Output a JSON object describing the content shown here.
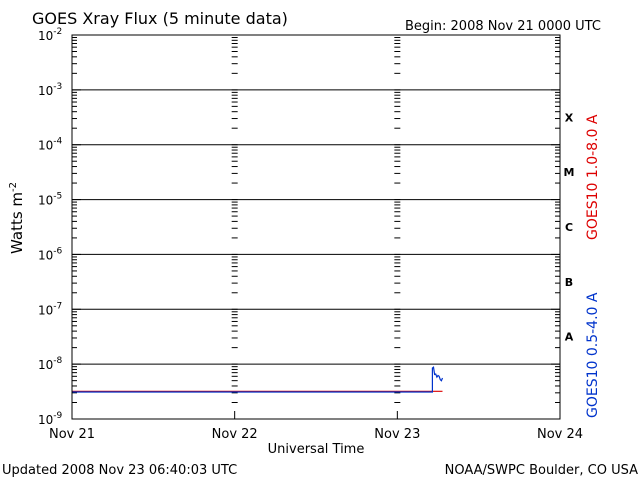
{
  "header": {
    "title": "GOES Xray Flux (5 minute data)",
    "begin": "Begin:  2008 Nov 21 0000 UTC"
  },
  "footer": {
    "updated": "Updated 2008 Nov 23 06:40:03 UTC",
    "source": "NOAA/SWPC Boulder, CO USA"
  },
  "chart_data": {
    "type": "line",
    "title": "GOES Xray Flux (5 minute data)",
    "xlabel": "Universal Time",
    "ylabel_base": "Watts m",
    "ylabel_exp": "-2",
    "y_scale": "log",
    "ylim": [
      1e-09,
      0.01
    ],
    "y_ticks": [
      {
        "exp": "-9",
        "value": 1e-09
      },
      {
        "exp": "-8",
        "value": 1e-08
      },
      {
        "exp": "-7",
        "value": 1e-07
      },
      {
        "exp": "-6",
        "value": 1e-06
      },
      {
        "exp": "-5",
        "value": 1e-05
      },
      {
        "exp": "-4",
        "value": 0.0001
      },
      {
        "exp": "-3",
        "value": 0.001
      },
      {
        "exp": "-2",
        "value": 0.01
      }
    ],
    "y_tick_base": "10",
    "x_ticks": [
      "Nov 21",
      "Nov 22",
      "Nov 23",
      "Nov 24"
    ],
    "xlim": [
      "2008-11-21 00:00",
      "2008-11-24 00:00"
    ],
    "flare_classes": [
      {
        "label": "X",
        "value": 0.0001
      },
      {
        "label": "M",
        "value": 1e-05
      },
      {
        "label": "C",
        "value": 1e-06
      },
      {
        "label": "B",
        "value": 1e-07
      },
      {
        "label": "A",
        "value": 1e-08
      }
    ],
    "horizontal_grid": [
      1e-08,
      1e-07,
      1e-06,
      1e-05,
      0.0001,
      0.001
    ],
    "series": [
      {
        "name": "GOES10 1.0-8.0 A",
        "color": "#dd0000",
        "points": [
          {
            "t": "2008-11-21 00:00",
            "v": 3.2e-09
          },
          {
            "t": "2008-11-23 06:40",
            "v": 3.2e-09
          }
        ]
      },
      {
        "name": "GOES10 0.5-4.0 A",
        "color": "#0033cc",
        "points": [
          {
            "t": "2008-11-21 00:00",
            "v": 3.1e-09
          },
          {
            "t": "2008-11-23 05:10",
            "v": 3.1e-09
          },
          {
            "t": "2008-11-23 05:10",
            "v": 8.5e-09
          },
          {
            "t": "2008-11-23 05:20",
            "v": 8.8e-09
          },
          {
            "t": "2008-11-23 05:30",
            "v": 6.5e-09
          },
          {
            "t": "2008-11-23 05:40",
            "v": 6.6e-09
          },
          {
            "t": "2008-11-23 05:50",
            "v": 5.8e-09
          },
          {
            "t": "2008-11-23 06:00",
            "v": 6.2e-09
          },
          {
            "t": "2008-11-23 06:10",
            "v": 6e-09
          },
          {
            "t": "2008-11-23 06:20",
            "v": 5.2e-09
          },
          {
            "t": "2008-11-23 06:30",
            "v": 5e-09
          },
          {
            "t": "2008-11-23 06:40",
            "v": 5.6e-09
          }
        ]
      }
    ]
  }
}
